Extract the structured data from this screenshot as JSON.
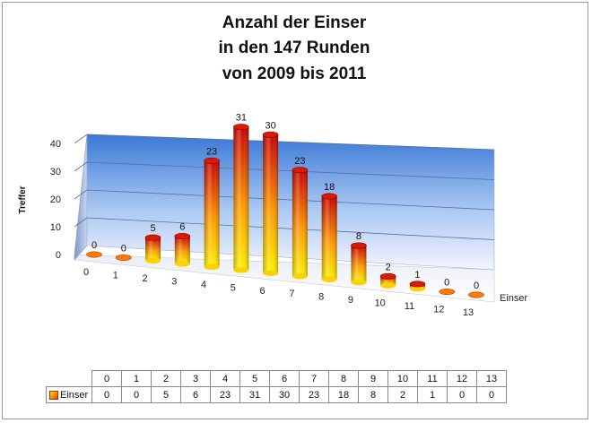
{
  "chart_data": {
    "type": "bar",
    "title": [
      "Anzahl der Einser",
      "in den 147 Runden",
      "von 2009 bis 2011"
    ],
    "categories": [
      "0",
      "1",
      "2",
      "3",
      "4",
      "5",
      "6",
      "7",
      "8",
      "9",
      "10",
      "11",
      "12",
      "13"
    ],
    "series": [
      {
        "name": "Einser",
        "values": [
          0,
          0,
          5,
          6,
          23,
          31,
          30,
          23,
          18,
          8,
          2,
          1,
          0,
          0
        ]
      }
    ],
    "xlabel": "Einser",
    "ylabel": "Treffer",
    "ylim": [
      0,
      40
    ],
    "yticks": [
      "0",
      "10",
      "20",
      "30",
      "40"
    ],
    "grid": true,
    "legend": "data-table",
    "style": "3d-cylinder"
  }
}
